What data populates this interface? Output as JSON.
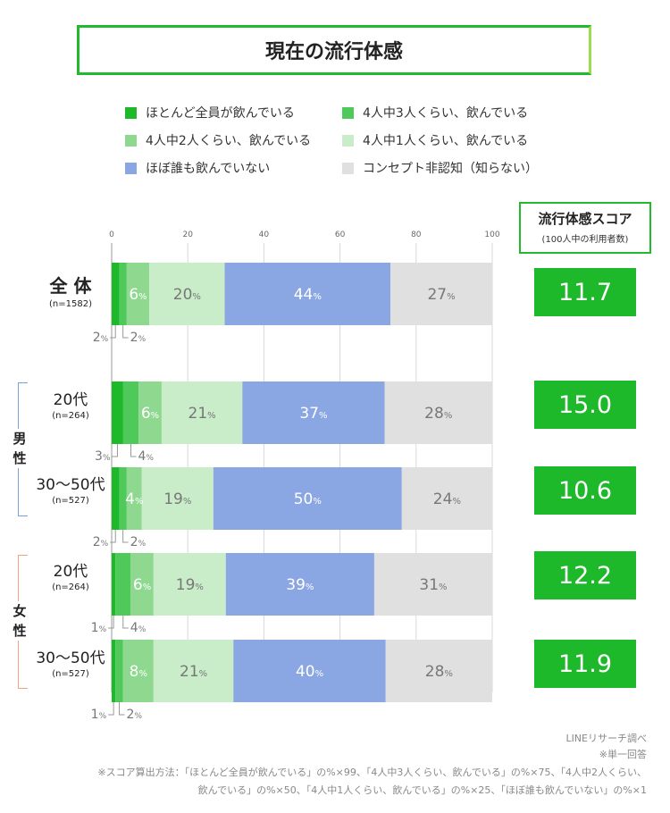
{
  "title": "現在の流行体感",
  "legend": [
    {
      "label": "ほとんど全員が飲んでいる",
      "color": "#1db92b"
    },
    {
      "label": "4人中3人くらい、飲んでいる",
      "color": "#4fc95a"
    },
    {
      "label": "4人中2人くらい、飲んでいる",
      "color": "#8ed98f"
    },
    {
      "label": "4人中1人くらい、飲んでいる",
      "color": "#c9ecc9"
    },
    {
      "label": "ほぼ誰も飲んでいない",
      "color": "#8aa6e3"
    },
    {
      "label": "コンセプト非認知（知らない）",
      "color": "#e0e0e0"
    }
  ],
  "score_header": {
    "title": "流行体感スコア",
    "subtitle": "(100人中の利用者数)"
  },
  "groups": {
    "male": "男性",
    "female": "女性"
  },
  "chart_data": {
    "type": "bar",
    "orientation": "horizontal-stacked",
    "title": "現在の流行体感",
    "x_ticks": [
      "0",
      "20",
      "40",
      "60",
      "80",
      "100"
    ],
    "xlim": [
      0,
      100
    ],
    "unit": "%",
    "series_names": [
      "ほとんど全員が飲んでいる",
      "4人中3人くらい、飲んでいる",
      "4人中2人くらい、飲んでいる",
      "4人中1人くらい、飲んでいる",
      "ほぼ誰も飲んでいない",
      "コンセプト非認知（知らない）"
    ],
    "rows": [
      {
        "label": "全 体",
        "n": "(n=1582)",
        "values": [
          2,
          2,
          6,
          20,
          44,
          27
        ],
        "score": "11.7"
      },
      {
        "label": "20代",
        "n": "(n=264)",
        "group": "男性",
        "values": [
          3,
          4,
          6,
          21,
          37,
          28
        ],
        "score": "15.0"
      },
      {
        "label": "30〜50代",
        "n": "(n=527)",
        "group": "男性",
        "values": [
          2,
          2,
          4,
          19,
          50,
          24
        ],
        "score": "10.6"
      },
      {
        "label": "20代",
        "n": "(n=264)",
        "group": "女性",
        "values": [
          1,
          4,
          6,
          19,
          39,
          31
        ],
        "score": "12.2"
      },
      {
        "label": "30〜50代",
        "n": "(n=527)",
        "group": "女性",
        "values": [
          1,
          2,
          8,
          21,
          40,
          28
        ],
        "score": "11.9"
      }
    ]
  },
  "footer": {
    "source": "LINEリサーチ調べ",
    "note": "※単一回答",
    "method1": "※スコア算出方法：「ほとんど全員が飲んでいる」の%×99、「4人中3人くらい、飲んでいる」の%×75、「4人中2人くらい、",
    "method2": "飲んでいる」の%×50、「4人中1人くらい、飲んでいる」の%×25、「ほぼ誰も飲んでいない」の%×1"
  }
}
